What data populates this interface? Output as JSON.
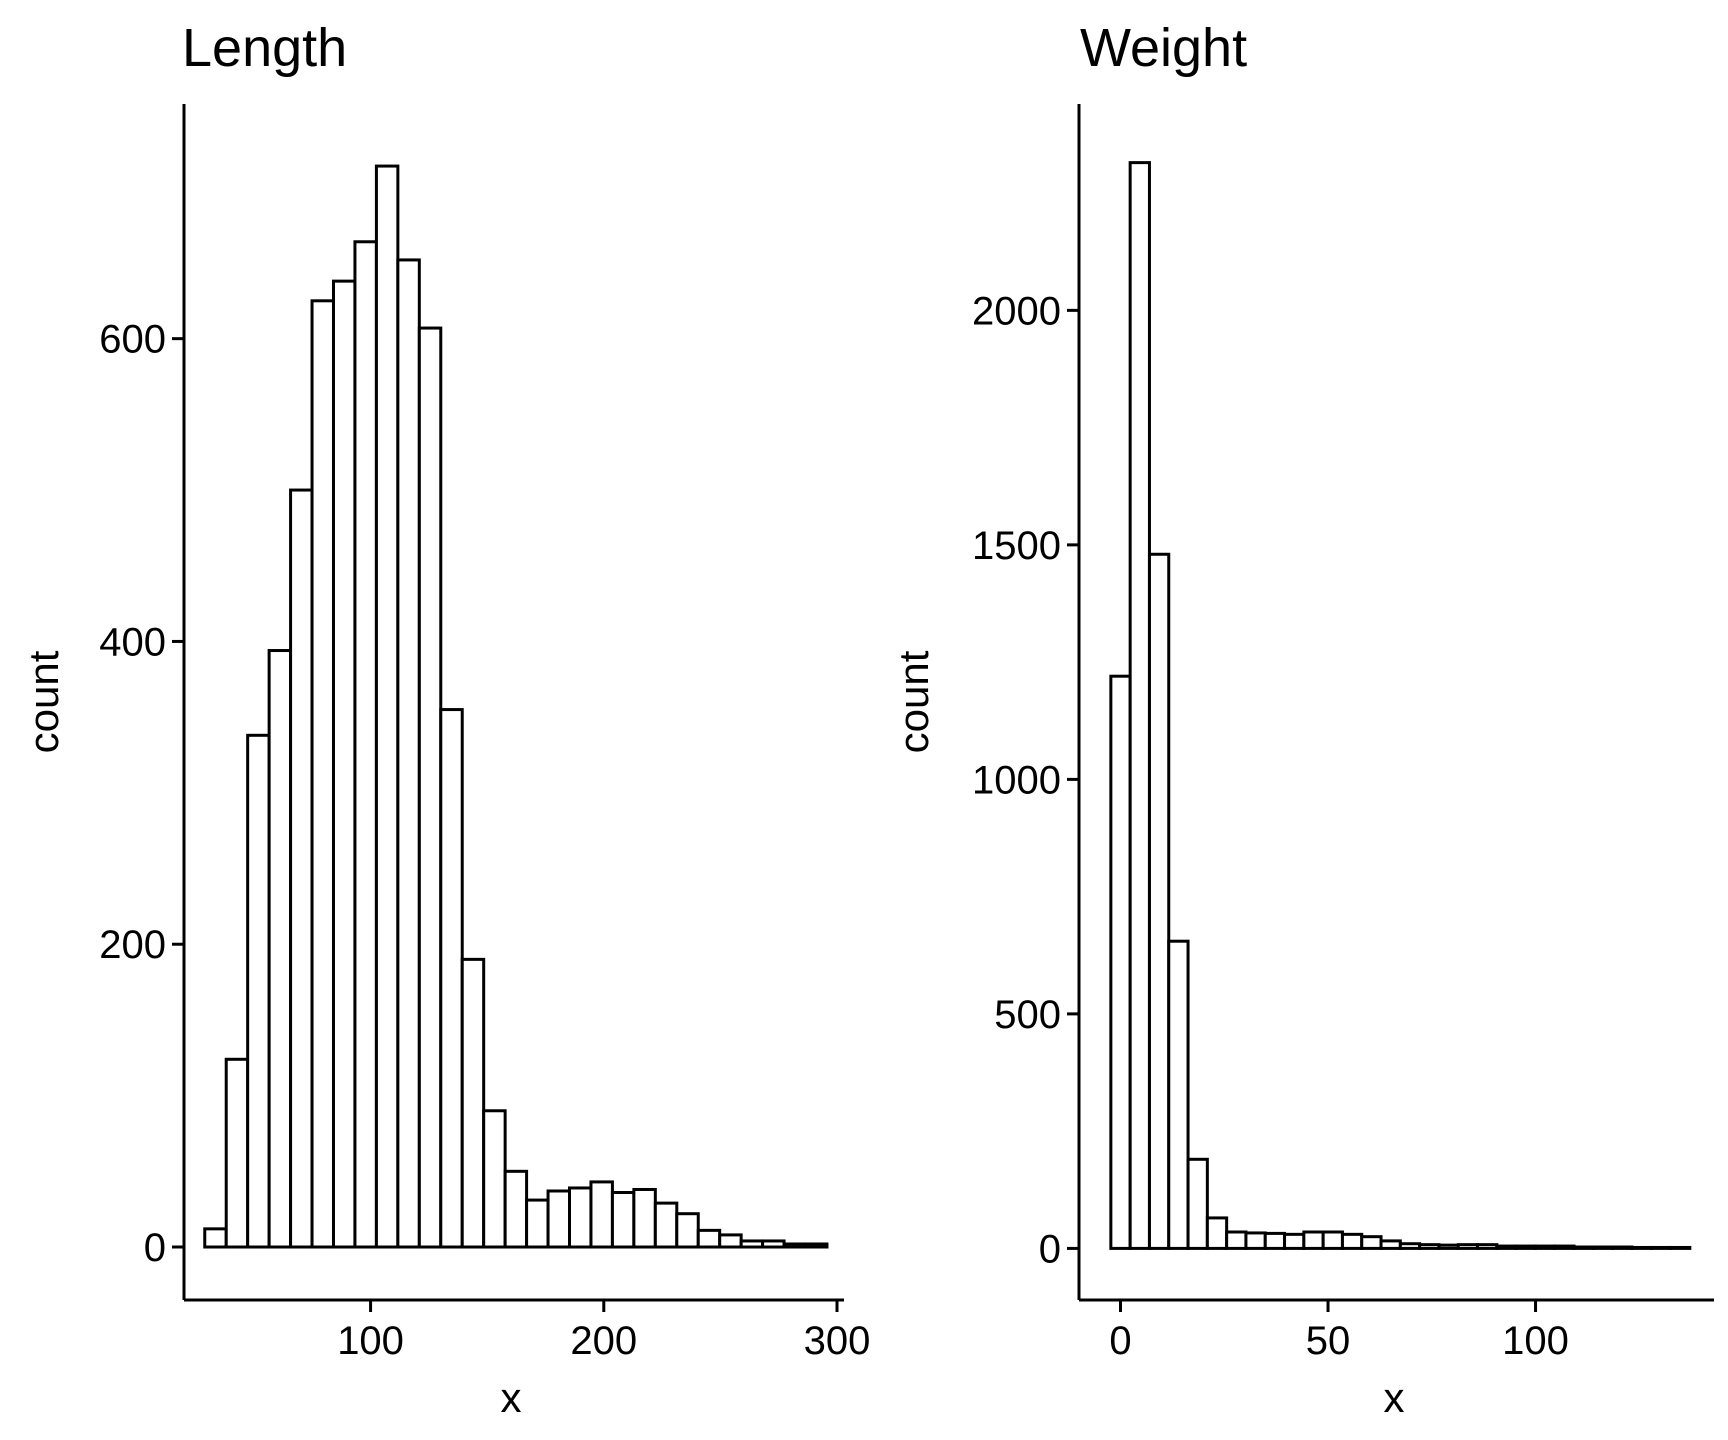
{
  "chart_data": [
    {
      "type": "bar",
      "title": "Length",
      "xlabel": "x",
      "ylabel": "count",
      "bin_width": 9.2,
      "bin_centers": [
        33.5,
        42.7,
        51.9,
        61.1,
        70.3,
        79.5,
        88.7,
        97.9,
        107.1,
        116.3,
        125.5,
        134.7,
        143.9,
        153.1,
        162.3,
        171.5,
        180.7,
        189.9,
        199.1,
        208.3,
        217.5,
        226.7,
        235.9,
        245.1,
        254.3,
        263.5,
        272.7,
        281.9,
        291.1
      ],
      "values": [
        12,
        124,
        338,
        394,
        500,
        625,
        638,
        664,
        714,
        652,
        607,
        355,
        190,
        90,
        50,
        31,
        37,
        39,
        43,
        36,
        38,
        29,
        22,
        11,
        8,
        4,
        4,
        2,
        2
      ],
      "xlim": [
        20,
        303
      ],
      "ylim": [
        -35,
        755
      ],
      "xticks": [
        100,
        200,
        300
      ],
      "yticks": [
        0,
        200,
        400,
        600
      ],
      "grid": false,
      "legend": "none"
    },
    {
      "type": "bar",
      "title": "Weight",
      "xlabel": "x",
      "ylabel": "count",
      "bin_width": 4.65,
      "bin_centers": [
        0,
        4.65,
        9.3,
        13.95,
        18.6,
        23.25,
        27.9,
        32.55,
        37.2,
        41.85,
        46.5,
        51.15,
        55.8,
        60.45,
        65.1,
        69.75,
        74.4,
        79.05,
        83.7,
        88.35,
        93.0,
        97.65,
        102.3,
        106.95,
        111.6,
        116.25,
        120.9,
        125.55,
        130.2,
        134.85
      ],
      "values": [
        1220,
        2315,
        1480,
        655,
        190,
        65,
        35,
        33,
        32,
        30,
        35,
        35,
        30,
        25,
        16,
        10,
        8,
        7,
        8,
        8,
        5,
        5,
        5,
        5,
        3,
        3,
        3,
        2,
        2,
        2
      ],
      "xlim": [
        -10,
        143
      ],
      "ylim": [
        -110,
        2440
      ],
      "xticks": [
        0,
        50,
        100
      ],
      "yticks": [
        0,
        500,
        1000,
        1500,
        2000
      ],
      "grid": false,
      "legend": "none"
    }
  ]
}
